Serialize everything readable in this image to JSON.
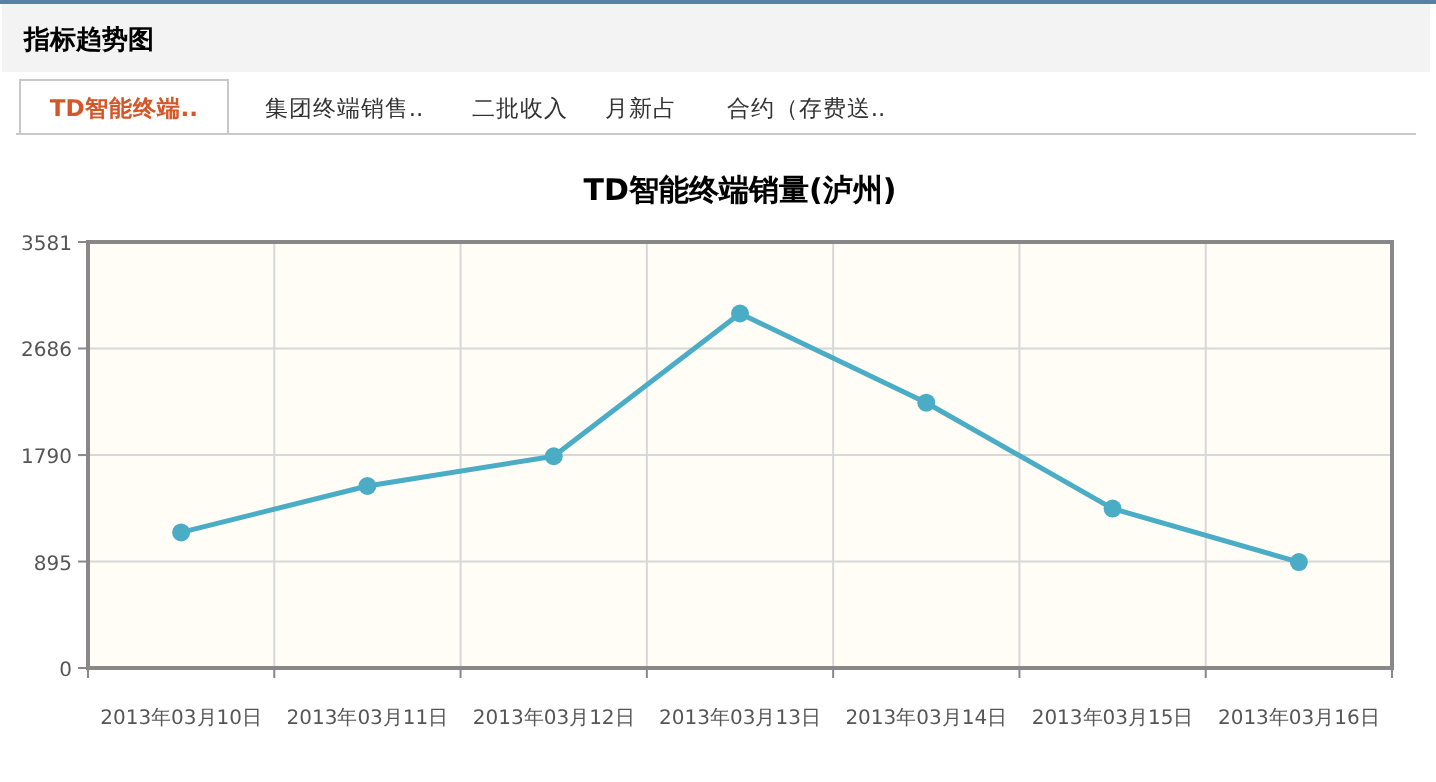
{
  "chart_data": {
    "type": "line",
    "title": "TD智能终端销量(泸州)",
    "annotations": [
      "指标趋势图",
      "TD智能终端..",
      "集团终端销售..",
      "二批收入",
      "月新占",
      "合约（存费送.."
    ],
    "categories": [
      "2013年03月10日",
      "2013年03月11日",
      "2013年03月12日",
      "2013年03月13日",
      "2013年03月14日",
      "2013年03月15日",
      "2013年03月16日"
    ],
    "series": [
      {
        "color": "#4bacc6",
        "values": [
          1140,
          1530,
          1780,
          2980,
          2230,
          1340,
          890
        ]
      }
    ],
    "ylim": [
      0,
      3581
    ],
    "yticks": [
      0,
      895,
      1790,
      2686,
      3581
    ],
    "grid": true,
    "marker": "circle",
    "line_style": "solid"
  }
}
